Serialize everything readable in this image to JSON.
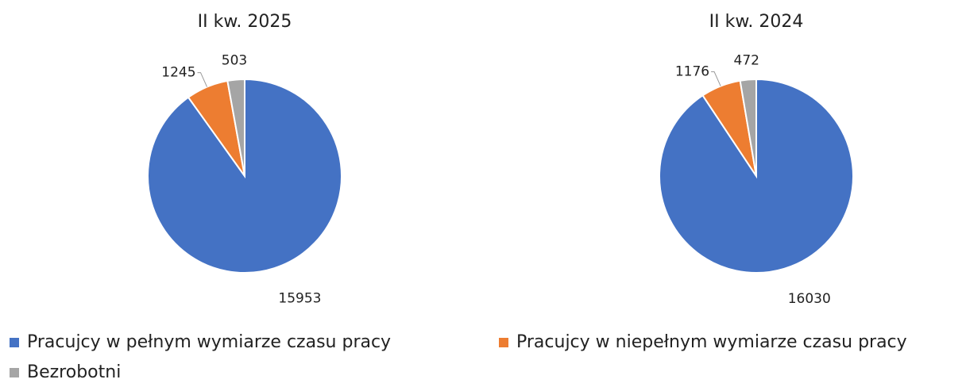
{
  "chart_data": [
    {
      "type": "pie",
      "title": "II kw. 2025",
      "categories": [
        "Pracujcy w pełnym wymiarze czasu pracy",
        "Pracujcy w niepełnym wymiarze czasu pracy",
        "Bezrobotni"
      ],
      "colors": [
        "#4472c4",
        "#ed7d31",
        "#a5a5a5"
      ],
      "values": [
        15953,
        1245,
        503
      ]
    },
    {
      "type": "pie",
      "title": "II kw. 2024",
      "values": [
        16030,
        1176,
        472
      ]
    }
  ]
}
